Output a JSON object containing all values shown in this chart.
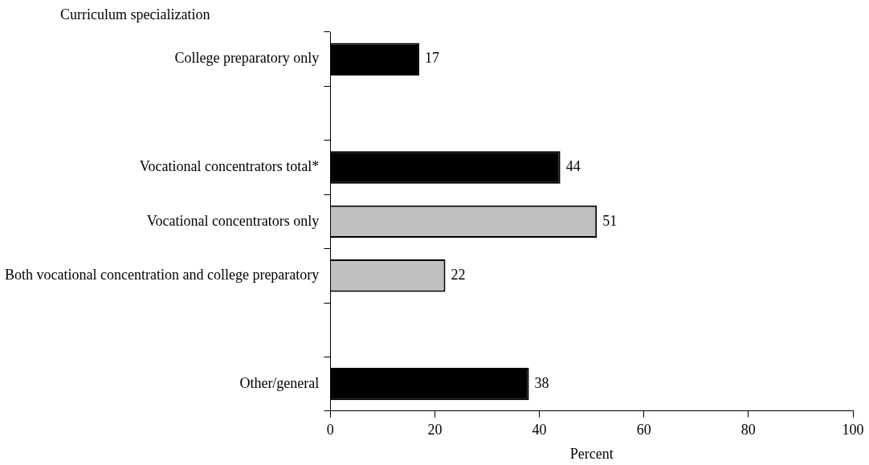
{
  "chart_data": {
    "type": "bar",
    "orientation": "horizontal",
    "ylabel": "Curriculum specialization",
    "xlabel": "Percent",
    "categories": [
      "College preparatory only",
      null,
      "Vocational concentrators total*",
      "Vocational concentrators only",
      "Both vocational concentration and college preparatory",
      null,
      "Other/general"
    ],
    "values": [
      17,
      null,
      44,
      51,
      22,
      null,
      38
    ],
    "colors": [
      "#000000",
      "#000000",
      "#000000",
      "#c0c0c0",
      "#c0c0c0",
      "#000000",
      "#000000"
    ],
    "xlim": [
      0,
      100
    ],
    "xticks": [
      0,
      20,
      40,
      60,
      80,
      100
    ],
    "grid": false,
    "legend": false,
    "data_labels": true
  }
}
